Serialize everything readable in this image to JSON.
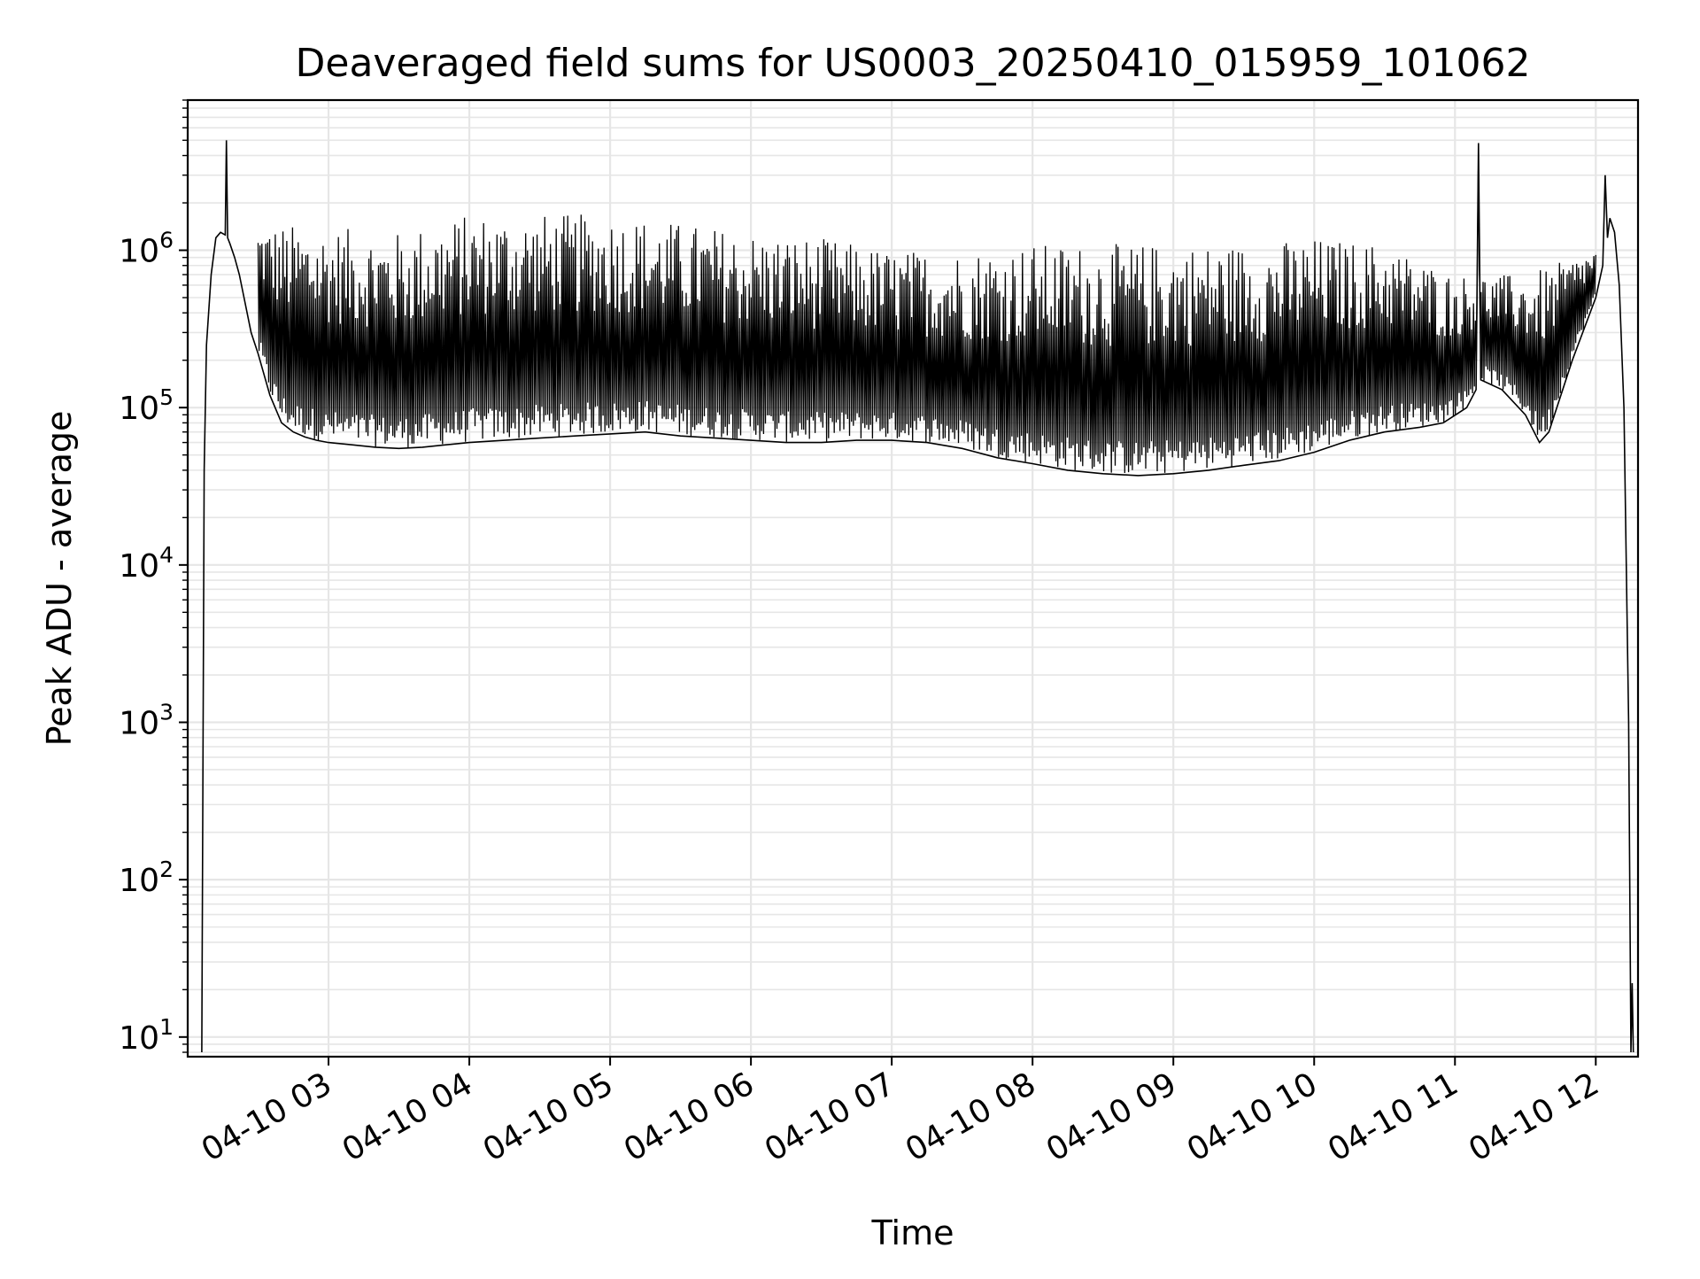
{
  "chart_data": {
    "type": "line",
    "title": "Deaveraged field sums for US0003_20250410_015959_101062",
    "xlabel": "Time",
    "ylabel": "Peak ADU - average",
    "yscale": "log",
    "ylim": [
      7.5,
      9000000
    ],
    "xlim": [
      "2025-04-10T02:00:00",
      "2025-04-10T12:18:00"
    ],
    "grid": true,
    "legend": "none",
    "colors": {
      "line": "#000000",
      "grid": "#e6e6e6",
      "background": "#ffffff"
    },
    "x_ticks": [
      {
        "t": "2025-04-10T03:00:00",
        "label": "04-10 03"
      },
      {
        "t": "2025-04-10T04:00:00",
        "label": "04-10 04"
      },
      {
        "t": "2025-04-10T05:00:00",
        "label": "04-10 05"
      },
      {
        "t": "2025-04-10T06:00:00",
        "label": "04-10 06"
      },
      {
        "t": "2025-04-10T07:00:00",
        "label": "04-10 07"
      },
      {
        "t": "2025-04-10T08:00:00",
        "label": "04-10 08"
      },
      {
        "t": "2025-04-10T09:00:00",
        "label": "04-10 09"
      },
      {
        "t": "2025-04-10T10:00:00",
        "label": "04-10 10"
      },
      {
        "t": "2025-04-10T11:00:00",
        "label": "04-10 11"
      },
      {
        "t": "2025-04-10T12:00:00",
        "label": "04-10 12"
      }
    ],
    "y_ticks": [
      {
        "value": 10,
        "base": "10",
        "exp": "1"
      },
      {
        "value": 100,
        "base": "10",
        "exp": "2"
      },
      {
        "value": 1000,
        "base": "10",
        "exp": "3"
      },
      {
        "value": 10000,
        "base": "10",
        "exp": "4"
      },
      {
        "value": 100000,
        "base": "10",
        "exp": "5"
      },
      {
        "value": 1000000,
        "base": "10",
        "exp": "6"
      }
    ],
    "series": [
      {
        "x": [
          "2025-04-10T02:06:00",
          "2025-04-10T02:07:00",
          "2025-04-10T02:08:00",
          "2025-04-10T02:10:00",
          "2025-04-10T02:12:00",
          "2025-04-10T02:14:00",
          "2025-04-10T02:16:00",
          "2025-04-10T02:16:30",
          "2025-04-10T02:17:00",
          "2025-04-10T02:18:00",
          "2025-04-10T02:20:00",
          "2025-04-10T02:22:00",
          "2025-04-10T02:24:00",
          "2025-04-10T02:27:00",
          "2025-04-10T02:30:00",
          "2025-04-10T02:35:00",
          "2025-04-10T02:40:00",
          "2025-04-10T02:45:00",
          "2025-04-10T02:50:00",
          "2025-04-10T02:55:00",
          "2025-04-10T03:00:00",
          "2025-04-10T03:10:00",
          "2025-04-10T03:20:00",
          "2025-04-10T03:30:00",
          "2025-04-10T03:40:00",
          "2025-04-10T03:50:00",
          "2025-04-10T04:00:00",
          "2025-04-10T04:15:00",
          "2025-04-10T04:30:00",
          "2025-04-10T04:45:00",
          "2025-04-10T05:00:00",
          "2025-04-10T05:15:00",
          "2025-04-10T05:30:00",
          "2025-04-10T05:45:00",
          "2025-04-10T06:00:00",
          "2025-04-10T06:15:00",
          "2025-04-10T06:30:00",
          "2025-04-10T06:45:00",
          "2025-04-10T07:00:00",
          "2025-04-10T07:15:00",
          "2025-04-10T07:30:00",
          "2025-04-10T07:45:00",
          "2025-04-10T08:00:00",
          "2025-04-10T08:15:00",
          "2025-04-10T08:30:00",
          "2025-04-10T08:45:00",
          "2025-04-10T09:00:00",
          "2025-04-10T09:15:00",
          "2025-04-10T09:30:00",
          "2025-04-10T09:45:00",
          "2025-04-10T10:00:00",
          "2025-04-10T10:15:00",
          "2025-04-10T10:30:00",
          "2025-04-10T10:45:00",
          "2025-04-10T10:55:00",
          "2025-04-10T11:05:00",
          "2025-04-10T11:09:00",
          "2025-04-10T11:10:00",
          "2025-04-10T11:11:00",
          "2025-04-10T11:20:00",
          "2025-04-10T11:30:00",
          "2025-04-10T11:36:00",
          "2025-04-10T11:40:00",
          "2025-04-10T11:50:00",
          "2025-04-10T12:00:00",
          "2025-04-10T12:03:00",
          "2025-04-10T12:04:00",
          "2025-04-10T12:05:00",
          "2025-04-10T12:06:00",
          "2025-04-10T12:08:00",
          "2025-04-10T12:10:00",
          "2025-04-10T12:12:00",
          "2025-04-10T12:14:00",
          "2025-04-10T12:15:00",
          "2025-04-10T12:15:30",
          "2025-04-10T12:16:00"
        ],
        "y": [
          8,
          40000,
          250000,
          700000,
          1200000,
          1300000,
          1250000,
          5000000,
          1200000,
          1100000,
          900000,
          700000,
          500000,
          300000,
          220000,
          120000,
          80000,
          70000,
          65000,
          62000,
          60000,
          58000,
          56000,
          55000,
          56000,
          58000,
          60000,
          62000,
          64000,
          66000,
          68000,
          70000,
          66000,
          64000,
          62000,
          60000,
          60000,
          62000,
          62000,
          60000,
          55000,
          48000,
          44000,
          40000,
          38000,
          37000,
          38000,
          40000,
          43000,
          46000,
          52000,
          62000,
          70000,
          75000,
          80000,
          100000,
          130000,
          4800000,
          150000,
          130000,
          90000,
          60000,
          70000,
          200000,
          500000,
          800000,
          3000000,
          1200000,
          1600000,
          1300000,
          600000,
          100000,
          1000,
          8,
          22,
          8
        ],
        "envelope_max_x": [
          "2025-04-10T02:30:00",
          "2025-04-10T03:00:00",
          "2025-04-10T03:30:00",
          "2025-04-10T04:00:00",
          "2025-04-10T04:30:00",
          "2025-04-10T05:00:00",
          "2025-04-10T05:30:00",
          "2025-04-10T06:00:00",
          "2025-04-10T06:30:00",
          "2025-04-10T07:00:00",
          "2025-04-10T07:30:00",
          "2025-04-10T08:00:00",
          "2025-04-10T08:30:00",
          "2025-04-10T09:00:00",
          "2025-04-10T09:30:00",
          "2025-04-10T10:00:00",
          "2025-04-10T10:30:00",
          "2025-04-10T11:00:00",
          "2025-04-10T11:30:00",
          "2025-04-10T12:00:00"
        ],
        "envelope_max_y": [
          1500000,
          1400000,
          1300000,
          1700000,
          1700000,
          1700000,
          1500000,
          1300000,
          1200000,
          1000000,
          1000000,
          1100000,
          1100000,
          1100000,
          1100000,
          1200000,
          1100000,
          700000,
          700000,
          1000000
        ]
      }
    ]
  }
}
